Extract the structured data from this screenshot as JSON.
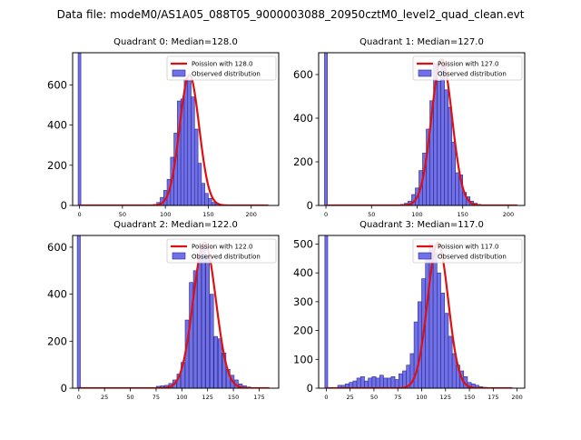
{
  "figure": {
    "title": "Data file: modeM0/AS1A05_088T05_9000003088_20950cztM0_level2_quad_clean.evt"
  },
  "colors": {
    "bar_fill": "#7070e8",
    "bar_edge": "#2b2b8a",
    "curve": "#e01010"
  },
  "chart_data": [
    {
      "type": "bar",
      "title": "Quadrant 0: Median=128.0",
      "xlim": [
        -8,
        232
      ],
      "ylim": [
        0,
        760
      ],
      "xticks": [
        0,
        50,
        100,
        150,
        200
      ],
      "yticks": [
        0,
        200,
        400,
        600
      ],
      "bin_width": 4,
      "spike": {
        "x": 0,
        "width": 3.2,
        "value": 760
      },
      "bins_x": [
        88,
        92,
        96,
        100,
        104,
        108,
        112,
        116,
        120,
        124,
        128,
        132,
        136,
        140,
        144,
        148,
        152,
        156,
        160,
        164,
        168
      ],
      "bins_y": [
        5,
        15,
        40,
        75,
        130,
        240,
        360,
        520,
        530,
        630,
        620,
        540,
        380,
        210,
        110,
        60,
        35,
        15,
        8,
        4,
        2
      ],
      "curve": {
        "lambda": 128.0,
        "peak": 650,
        "x_range": [
          0,
          220
        ]
      },
      "legend": {
        "poisson": "Poission with 128.0",
        "observed": "Observed distribution"
      }
    },
    {
      "type": "bar",
      "title": "Quadrant 1: Median=127.0",
      "xlim": [
        -8,
        218
      ],
      "ylim": [
        0,
        700
      ],
      "xticks": [
        0,
        50,
        100,
        150,
        200
      ],
      "yticks": [
        0,
        200,
        400,
        600
      ],
      "bin_width": 4,
      "spike": {
        "x": 0,
        "width": 3.2,
        "value": 700
      },
      "bins_x": [
        80,
        84,
        88,
        92,
        96,
        100,
        104,
        108,
        112,
        116,
        120,
        124,
        128,
        132,
        136,
        140,
        144,
        148,
        152,
        156,
        160,
        164,
        168,
        172
      ],
      "bins_y": [
        2,
        5,
        10,
        20,
        50,
        80,
        160,
        240,
        350,
        480,
        650,
        570,
        640,
        530,
        450,
        290,
        150,
        140,
        60,
        40,
        20,
        10,
        5,
        2
      ],
      "curve": {
        "lambda": 127.0,
        "peak": 670,
        "x_range": [
          0,
          210
        ]
      },
      "legend": {
        "poisson": "Poission with 127.0",
        "observed": "Observed distribution"
      }
    },
    {
      "type": "bar",
      "title": "Quadrant 2: Median=122.0",
      "xlim": [
        -6,
        194
      ],
      "ylim": [
        0,
        650
      ],
      "xticks": [
        0,
        25,
        50,
        75,
        100,
        125,
        150,
        175
      ],
      "yticks": [
        0,
        200,
        400,
        600
      ],
      "bin_width": 3.5,
      "spike": {
        "x": 0,
        "width": 3,
        "value": 650
      },
      "bins_x": [
        77,
        81,
        85,
        89,
        93,
        97,
        101,
        105,
        109,
        113,
        117,
        121,
        125,
        129,
        133,
        137,
        141,
        145,
        149,
        153,
        157,
        161,
        165
      ],
      "bins_y": [
        8,
        10,
        12,
        20,
        35,
        60,
        110,
        290,
        450,
        500,
        560,
        610,
        560,
        400,
        220,
        210,
        150,
        80,
        55,
        35,
        18,
        10,
        5
      ],
      "curve": {
        "lambda": 122.0,
        "peak": 620,
        "x_range": [
          0,
          185
        ]
      },
      "legend": {
        "poisson": "Poission with 122.0",
        "observed": "Observed distribution"
      }
    },
    {
      "type": "bar",
      "title": "Quadrant 3: Median=117.0",
      "xlim": [
        -8,
        208
      ],
      "ylim": [
        0,
        530
      ],
      "xticks": [
        0,
        25,
        50,
        75,
        100,
        125,
        150,
        175,
        200
      ],
      "yticks": [
        0,
        100,
        200,
        300,
        400,
        500
      ],
      "bin_width": 4,
      "spike": {
        "x": 0,
        "width": 3,
        "value": 530
      },
      "bins_x": [
        14,
        18,
        22,
        26,
        30,
        34,
        38,
        42,
        46,
        50,
        54,
        58,
        62,
        66,
        70,
        74,
        78,
        82,
        86,
        90,
        94,
        98,
        102,
        106,
        110,
        114,
        118,
        122,
        126,
        130,
        134,
        138,
        142,
        146,
        150,
        154,
        158,
        162,
        166,
        170
      ],
      "bins_y": [
        10,
        10,
        15,
        20,
        25,
        35,
        40,
        25,
        35,
        40,
        35,
        45,
        35,
        35,
        40,
        30,
        50,
        60,
        80,
        120,
        230,
        300,
        380,
        460,
        500,
        470,
        400,
        330,
        260,
        180,
        120,
        80,
        60,
        40,
        20,
        15,
        10,
        5,
        3,
        2
      ],
      "curve": {
        "lambda": 117.0,
        "peak": 505,
        "x_range": [
          0,
          195
        ]
      },
      "legend": {
        "poisson": "Poission with 117.0",
        "observed": "Observed distribution"
      }
    }
  ]
}
